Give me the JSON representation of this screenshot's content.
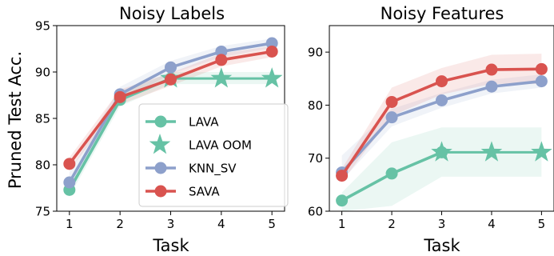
{
  "chart_data": [
    {
      "type": "line",
      "title": "Noisy Labels",
      "xlabel": "Task",
      "ylabel": "Pruned Test Acc.",
      "x": [
        1,
        2,
        3,
        4,
        5
      ],
      "xticks": [
        "1",
        "2",
        "3",
        "4",
        "5"
      ],
      "ylim": [
        75,
        95
      ],
      "yticks": [
        "75",
        "80",
        "85",
        "90",
        "95"
      ],
      "legend_position": "center-right",
      "series": [
        {
          "name": "LAVA",
          "color": "#66c2a5",
          "values": [
            77.3,
            87.0,
            89.3,
            null,
            null
          ],
          "band": [
            [
              76.6,
              78.0
            ],
            [
              86.3,
              87.7
            ],
            [
              88.7,
              90.0
            ],
            [
              null,
              null
            ],
            [
              null,
              null
            ]
          ]
        },
        {
          "name": "LAVA OOM",
          "color": "#66c2a5",
          "marker": "star",
          "x": [
            3,
            4,
            5
          ],
          "values": [
            89.3,
            89.3,
            89.3
          ],
          "band": [
            [
              88.7,
              90.0
            ],
            [
              88.7,
              90.0
            ],
            [
              88.7,
              90.0
            ]
          ]
        },
        {
          "name": "KNN_SV",
          "color": "#8da0cb",
          "values": [
            78.1,
            87.6,
            90.5,
            92.2,
            93.1
          ],
          "band": [
            [
              77.0,
              79.2
            ],
            [
              86.8,
              88.4
            ],
            [
              89.8,
              91.2
            ],
            [
              91.6,
              92.8
            ],
            [
              92.6,
              93.6
            ]
          ]
        },
        {
          "name": "SAVA",
          "color": "#d9534f",
          "values": [
            80.1,
            87.3,
            89.2,
            91.3,
            92.2
          ],
          "band": [
            [
              79.4,
              80.8
            ],
            [
              86.5,
              88.1
            ],
            [
              88.5,
              89.9
            ],
            [
              90.6,
              92.0
            ],
            [
              91.6,
              92.8
            ]
          ]
        }
      ]
    },
    {
      "type": "line",
      "title": "Noisy Features",
      "xlabel": "Task",
      "ylabel": "",
      "x": [
        1,
        2,
        3,
        4,
        5
      ],
      "xticks": [
        "1",
        "2",
        "3",
        "4",
        "5"
      ],
      "ylim": [
        60,
        95
      ],
      "yticks": [
        "60",
        "70",
        "80",
        "90"
      ],
      "series": [
        {
          "name": "LAVA",
          "color": "#66c2a5",
          "values": [
            62.0,
            67.1,
            71.1,
            null,
            null
          ],
          "band": [
            [
              60.0,
              63.5
            ],
            [
              61.0,
              73.0
            ],
            [
              66.5,
              75.8
            ],
            [
              null,
              null
            ],
            [
              null,
              null
            ]
          ]
        },
        {
          "name": "LAVA OOM",
          "color": "#66c2a5",
          "marker": "star",
          "x": [
            3,
            4,
            5
          ],
          "values": [
            71.1,
            71.1,
            71.1
          ],
          "band": [
            [
              66.5,
              75.8
            ],
            [
              66.5,
              75.8
            ],
            [
              66.5,
              75.8
            ]
          ]
        },
        {
          "name": "KNN_SV",
          "color": "#8da0cb",
          "values": [
            67.3,
            77.7,
            80.9,
            83.5,
            84.5
          ],
          "band": [
            [
              65.8,
              70.5
            ],
            [
              76.0,
              79.3
            ],
            [
              79.5,
              82.3
            ],
            [
              82.2,
              84.8
            ],
            [
              83.3,
              85.8
            ]
          ]
        },
        {
          "name": "SAVA",
          "color": "#d9534f",
          "values": [
            66.7,
            80.6,
            84.5,
            86.7,
            86.8
          ],
          "band": [
            [
              65.5,
              68.0
            ],
            [
              78.0,
              83.3
            ],
            [
              82.0,
              87.0
            ],
            [
              84.0,
              89.5
            ],
            [
              84.0,
              89.7
            ]
          ]
        }
      ]
    }
  ]
}
